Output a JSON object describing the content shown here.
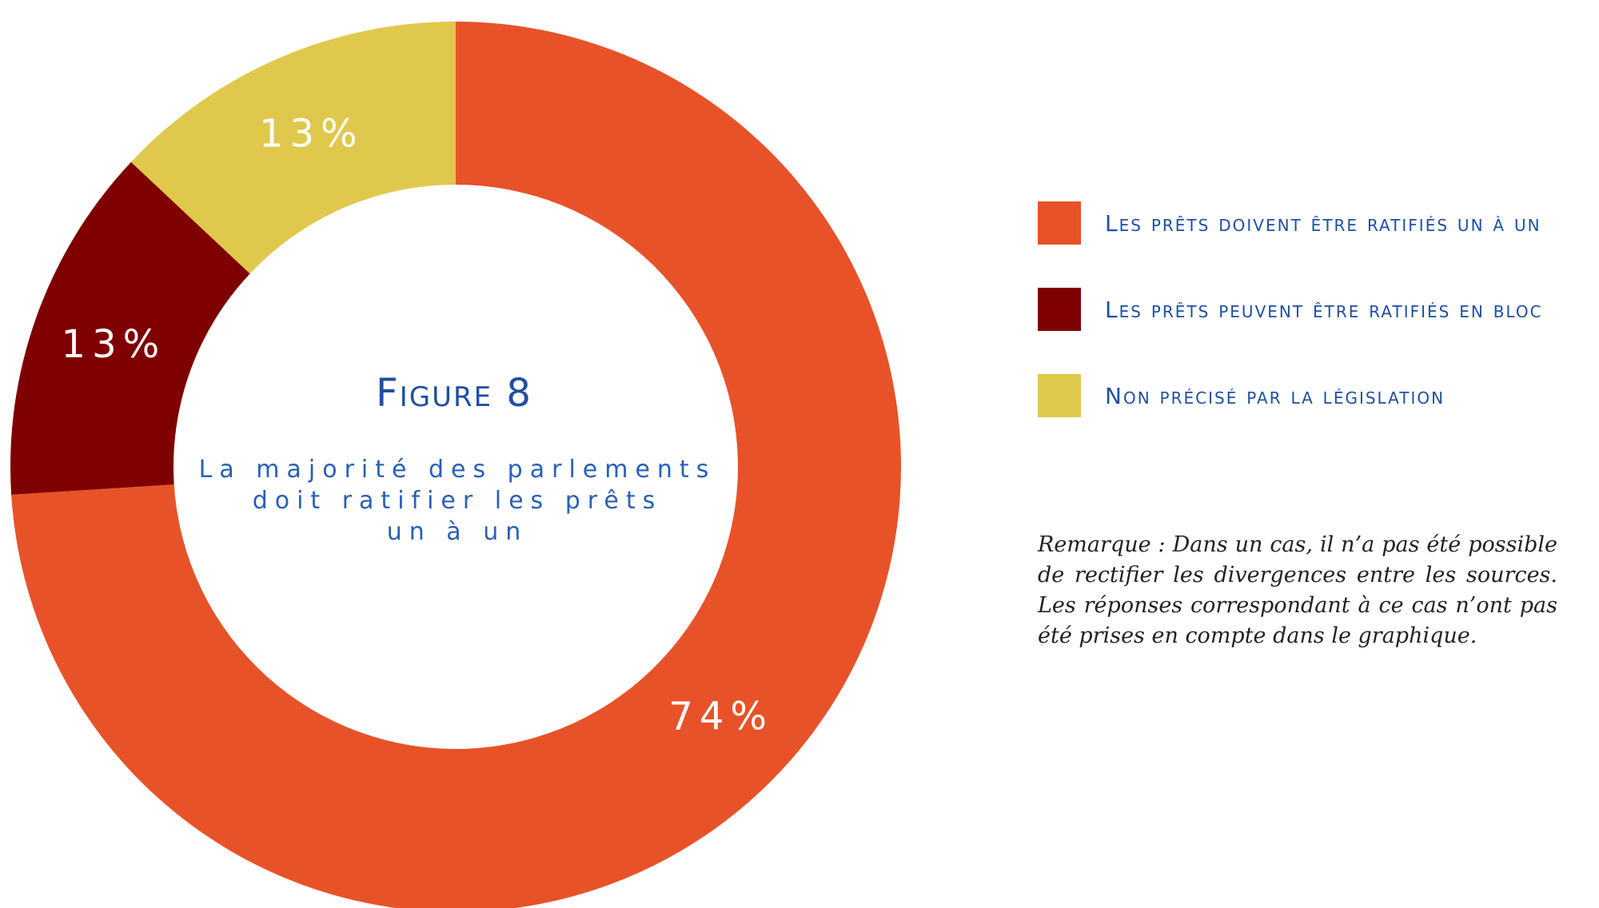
{
  "chart_data": {
    "type": "pie",
    "donut": true,
    "title": "Figure 8",
    "subtitle_lines": [
      "La majorité des parlements",
      "doit ratifier les prêts",
      "un à un"
    ],
    "slices": [
      {
        "label": "Les prêts doivent être ratifiés un à un",
        "value": 74,
        "display": "74%",
        "color": "#e85228"
      },
      {
        "label": "Les prêts peuvent être ratifiés en bloc",
        "value": 13,
        "display": "13%",
        "color": "#7f0000"
      },
      {
        "label": "Non précisé par la législation",
        "value": 13,
        "display": "13%",
        "color": "#e0c84c"
      }
    ],
    "legend_position": "right"
  },
  "note": "Remarque : Dans un cas, il n’a pas été possible de rectifier les divergences entre les sources. Les réponses correspondant à ce cas n’ont pas été prises en compte dans le graphique.",
  "colors": {
    "title": "#1f4fa3",
    "note": "#222222"
  }
}
